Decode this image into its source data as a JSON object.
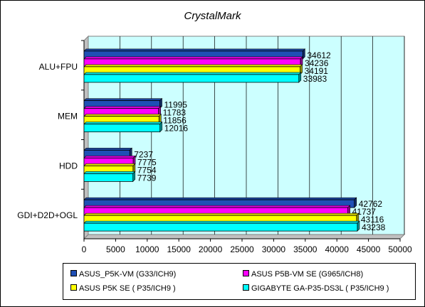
{
  "chart_data": {
    "type": "bar",
    "orientation": "horizontal",
    "title": "CrystalMark",
    "categories": [
      "ALU+FPU",
      "MEM",
      "HDD",
      "GDI+D2D+OGL"
    ],
    "series": [
      {
        "name": "ASUS_P5K-VM (G33/ICH9)",
        "color": "#1f4fb5",
        "values": [
          34612,
          11995,
          7237,
          42762
        ]
      },
      {
        "name": "ASUS P5B-VM SE (G965/ICH8)",
        "color": "#ff00ff",
        "values": [
          34236,
          11783,
          7775,
          41737
        ]
      },
      {
        "name": "ASUS P5K SE ( P35/ICH9 )",
        "color": "#ffff00",
        "values": [
          34191,
          11856,
          7754,
          43116
        ]
      },
      {
        "name": "GIGABYTE GA-P35-DS3L ( P35/ICH9 )",
        "color": "#00ffff",
        "values": [
          33983,
          12016,
          7739,
          43238
        ]
      }
    ],
    "xlim": [
      0,
      50000
    ],
    "xticks": [
      "0",
      "5000",
      "10000",
      "15000",
      "20000",
      "25000",
      "30000",
      "35000",
      "40000",
      "45000",
      "50000"
    ],
    "grid": true,
    "legend_position": "bottom",
    "plot_background": "#ccffff"
  }
}
